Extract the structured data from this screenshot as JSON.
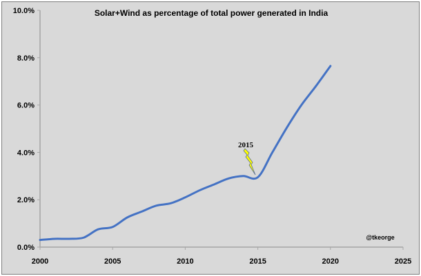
{
  "chart_data": {
    "type": "line",
    "title": "Solar+Wind as percentage of total power generated in India",
    "xlabel": "",
    "ylabel": "",
    "xlim": [
      2000,
      2025
    ],
    "ylim": [
      0,
      10
    ],
    "x_ticks": [
      "2000",
      "2005",
      "2010",
      "2015",
      "2020",
      "2025"
    ],
    "y_ticks": [
      "0.0%",
      "2.0%",
      "4.0%",
      "6.0%",
      "8.0%",
      "10.0%"
    ],
    "grid": false,
    "legend": "none",
    "series": [
      {
        "color": "#4472c4",
        "x": [
          2000,
          2001,
          2002,
          2003,
          2004,
          2005,
          2006,
          2007,
          2008,
          2009,
          2010,
          2011,
          2012,
          2013,
          2014,
          2015,
          2016,
          2017,
          2018,
          2019,
          2020
        ],
        "y": [
          0.3,
          0.35,
          0.35,
          0.4,
          0.75,
          0.85,
          1.25,
          1.5,
          1.75,
          1.85,
          2.1,
          2.4,
          2.65,
          2.9,
          3.0,
          2.95,
          4.0,
          5.05,
          6.0,
          6.8,
          7.65
        ]
      }
    ],
    "annotations": [
      {
        "text": "2015",
        "x": 2015,
        "y": 2.95,
        "icon": "lightning-bolt-icon",
        "icon_color": "#ffff00"
      }
    ],
    "watermark": "@tkeorge"
  }
}
